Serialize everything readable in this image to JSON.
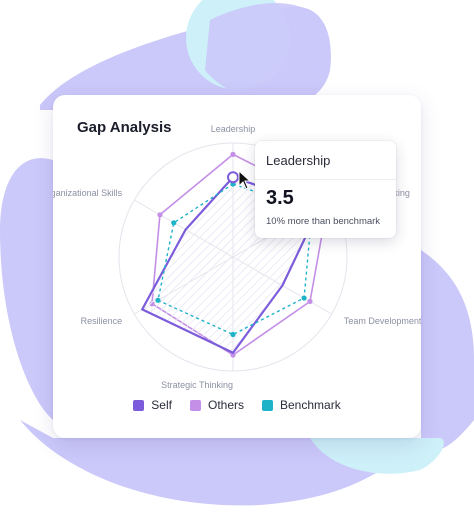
{
  "card": {
    "title": "Gap Analysis"
  },
  "chart_data": {
    "type": "radar",
    "title": "Gap Analysis",
    "axes": [
      "Leadership",
      "Decision Making",
      "Team Development",
      "Strategic Thinking",
      "Resilience",
      "Organizational Skills"
    ],
    "rlim": [
      0,
      5
    ],
    "series": [
      {
        "name": "Self",
        "color": "#7c5cdb",
        "values": [
          3.5,
          4.4,
          2.5,
          4.2,
          4.6,
          2.4
        ]
      },
      {
        "name": "Others",
        "color": "#c48fe6",
        "values": [
          4.5,
          4.8,
          3.9,
          4.3,
          4.1,
          3.7
        ]
      },
      {
        "name": "Benchmark",
        "color": "#1fb3c8",
        "values": [
          3.2,
          4.0,
          3.6,
          3.4,
          3.8,
          3.0
        ]
      }
    ],
    "highlight": {
      "axis": "Leadership",
      "series": "Self"
    }
  },
  "legend": [
    {
      "label": "Self",
      "color": "#7c5cdb"
    },
    {
      "label": "Others",
      "color": "#c48fe6"
    },
    {
      "label": "Benchmark",
      "color": "#1fb3c8"
    }
  ],
  "tooltip": {
    "title": "Leadership",
    "value": "3.5",
    "subtitle": "10% more than benchmark"
  },
  "colors": {
    "blob_purple": "#cbc8fa",
    "blob_blue": "#cdf0f9",
    "grid": "#e4e5ec",
    "hatch": "#ecebf6"
  }
}
